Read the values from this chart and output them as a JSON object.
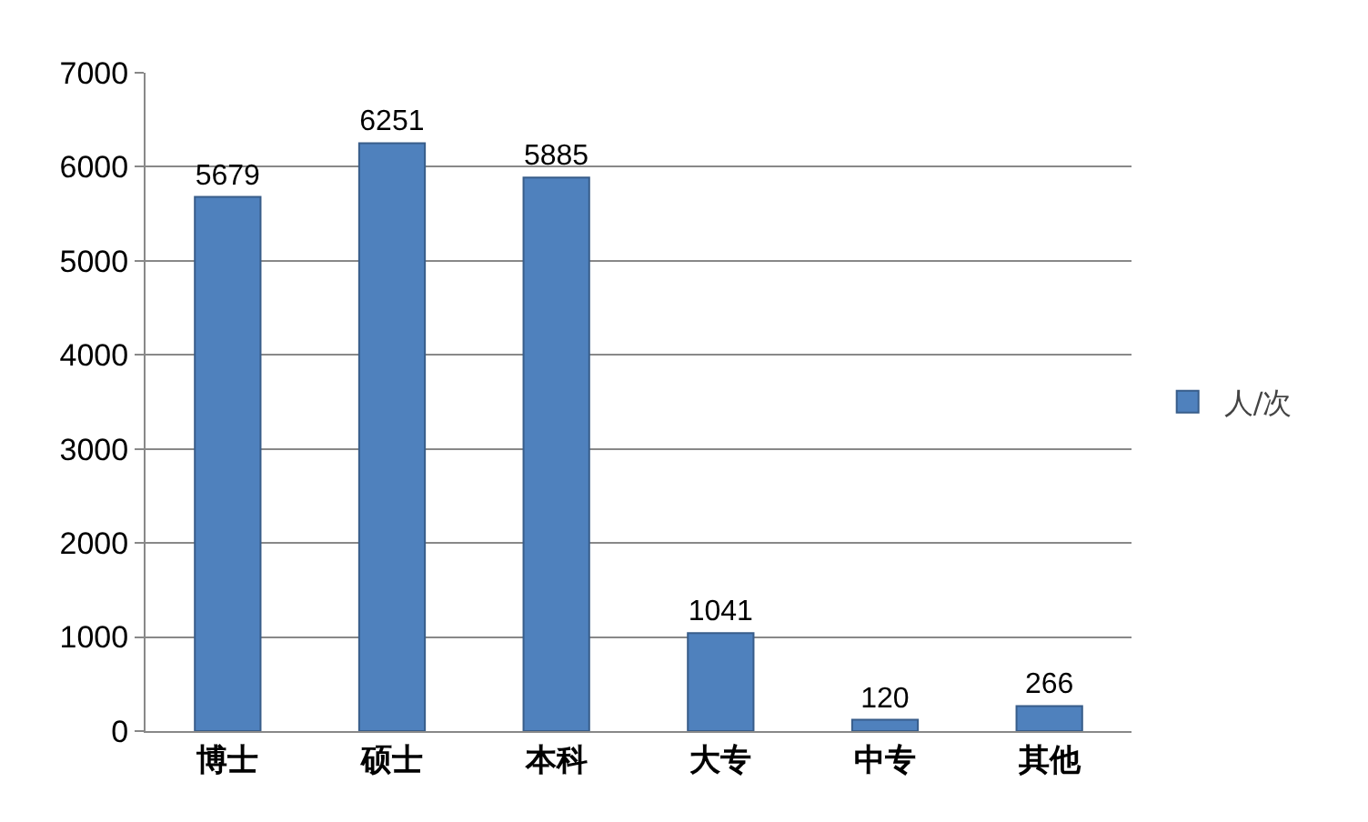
{
  "chart_data": {
    "type": "bar",
    "categories": [
      "博士",
      "硕士",
      "本科",
      "大专",
      "中专",
      "其他"
    ],
    "series": [
      {
        "name": "人/次",
        "color": "#4f81bd",
        "values": [
          5679,
          6251,
          5885,
          1041,
          120,
          266
        ]
      }
    ],
    "ylim": [
      0,
      7000
    ],
    "yticks": [
      0,
      1000,
      2000,
      3000,
      4000,
      5000,
      6000,
      7000
    ],
    "grid": "y",
    "legend": "right",
    "data_labels": true
  }
}
